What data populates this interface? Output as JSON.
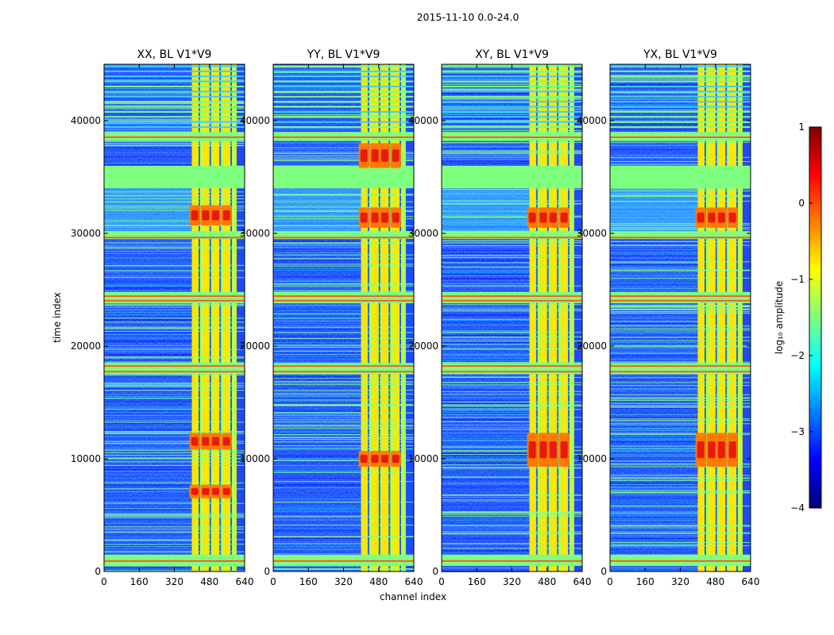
{
  "chart_data": {
    "type": "heatmap",
    "suptitle": "2015-11-10 0.0-24.0",
    "xlabel": "channel index",
    "ylabel": "time index",
    "xlim": [
      0,
      640
    ],
    "ylim": [
      0,
      45000
    ],
    "x_ticks": [
      0,
      160,
      320,
      480,
      640
    ],
    "y_ticks": [
      0,
      10000,
      20000,
      30000,
      40000
    ],
    "x_tick_labels": [
      "0",
      "160",
      "320",
      "480",
      "640"
    ],
    "y_tick_labels": [
      "0",
      "10000",
      "20000",
      "30000",
      "40000"
    ],
    "panels": [
      {
        "title": "XX, BL V1*V9",
        "rfi_hotspots": [
          [
            6500,
            7700
          ],
          [
            10800,
            12300
          ],
          [
            30700,
            32500
          ]
        ]
      },
      {
        "title": "YY, BL V1*V9",
        "rfi_hotspots": [
          [
            9300,
            10700
          ],
          [
            30500,
            32300
          ],
          [
            35800,
            38000
          ]
        ]
      },
      {
        "title": "XY, BL V1*V9",
        "rfi_hotspots": [
          [
            9300,
            12300
          ],
          [
            30500,
            32300
          ]
        ]
      },
      {
        "title": "YX, BL V1*V9",
        "rfi_hotspots": [
          [
            9300,
            12300
          ],
          [
            30500,
            32300
          ]
        ]
      }
    ],
    "rfi_channel_band": [
      400,
      600
    ],
    "rfi_channel_columns": [
      400,
      450,
      495,
      545,
      600
    ],
    "flagged_time_bands": [
      [
        500,
        1500
      ],
      [
        17500,
        18500
      ],
      [
        23800,
        24800
      ],
      [
        29500,
        30200
      ],
      [
        34000,
        36000
      ],
      [
        38200,
        39000
      ]
    ],
    "colorbar": {
      "label": "log₁₀ amplitude",
      "range": [
        -4,
        1
      ],
      "ticks": [
        1,
        0,
        -1,
        -2,
        -3,
        -4
      ],
      "tick_labels": [
        "1",
        "0",
        "−1",
        "−2",
        "−3",
        "−4"
      ],
      "colormap": "jet"
    }
  },
  "colors": {
    "jet": [
      "#00007f",
      "#0000ff",
      "#007fff",
      "#00ffff",
      "#7fff7f",
      "#ffff00",
      "#ff7f00",
      "#ff0000",
      "#7f0000"
    ]
  }
}
